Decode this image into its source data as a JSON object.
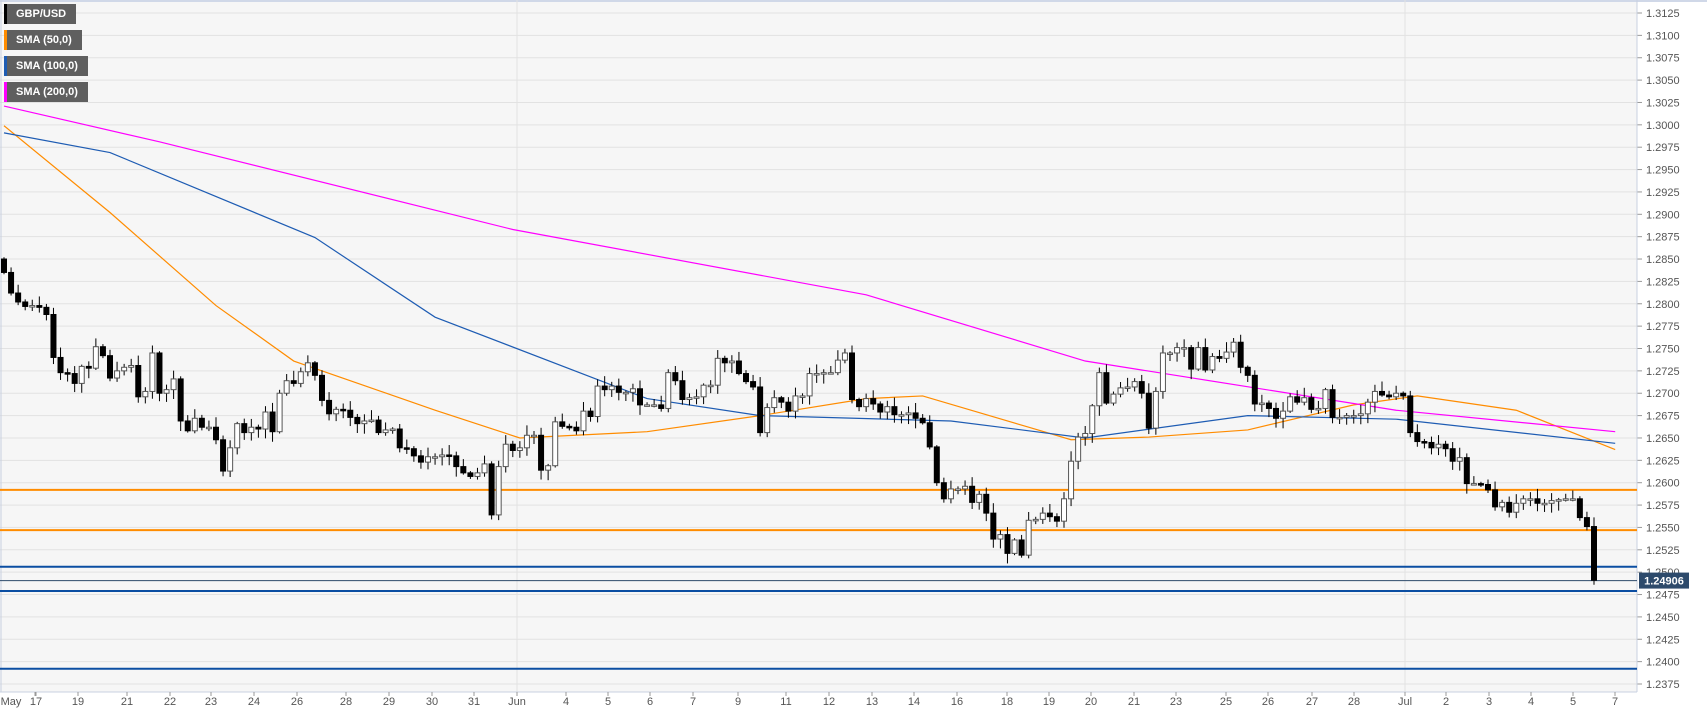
{
  "chart_data": {
    "type": "candlestick",
    "symbol": "GBP/USD",
    "legend": [
      {
        "label": "GBP/USD",
        "color": "#000000"
      },
      {
        "label": "SMA (50,0)",
        "color": "#ff8c00"
      },
      {
        "label": "SMA (100,0)",
        "color": "#1e5cb3"
      },
      {
        "label": "SMA (200,0)",
        "color": "#ff00ff"
      }
    ],
    "ylim": [
      1.2375,
      1.3125
    ],
    "ytick_step": 0.0025,
    "yticks": [
      "1.3125",
      "1.3100",
      "1.3075",
      "1.3050",
      "1.3025",
      "1.3000",
      "1.2975",
      "1.2950",
      "1.2925",
      "1.2900",
      "1.2875",
      "1.2850",
      "1.2825",
      "1.2800",
      "1.2775",
      "1.2750",
      "1.2725",
      "1.2700",
      "1.2675",
      "1.2650",
      "1.2625",
      "1.2600",
      "1.2575",
      "1.2550",
      "1.2525",
      "1.2500",
      "1.2475",
      "1.2450",
      "1.2425",
      "1.2400",
      "1.2375"
    ],
    "xticks": [
      "May",
      "17",
      "19",
      "21",
      "22",
      "23",
      "24",
      "26",
      "28",
      "29",
      "30",
      "31",
      "Jun",
      "4",
      "5",
      "6",
      "7",
      "9",
      "11",
      "12",
      "13",
      "14",
      "16",
      "18",
      "19",
      "20",
      "21",
      "23",
      "25",
      "26",
      "27",
      "28",
      "Jul",
      "2",
      "3",
      "4",
      "5",
      "7"
    ],
    "first_open": 1.285,
    "closes": [
      1.2835,
      1.2812,
      1.2802,
      1.2797,
      1.2798,
      1.2796,
      1.2788,
      1.274,
      1.2723,
      1.2722,
      1.2711,
      1.273,
      1.2728,
      1.2752,
      1.2742,
      1.2717,
      1.2725,
      1.2729,
      1.2731,
      1.2696,
      1.2702,
      1.2745,
      1.27,
      1.2704,
      1.2716,
      1.2669,
      1.2658,
      1.2672,
      1.2662,
      1.2662,
      1.2648,
      1.2613,
      1.2639,
      1.2666,
      1.2656,
      1.2662,
      1.266,
      1.2679,
      1.2657,
      1.27,
      1.2714,
      1.2711,
      1.2724,
      1.2734,
      1.272,
      1.2692,
      1.2677,
      1.2682,
      1.2681,
      1.2673,
      1.2666,
      1.2669,
      1.267,
      1.2656,
      1.2659,
      1.266,
      1.2639,
      1.2638,
      1.263,
      1.2623,
      1.2629,
      1.2629,
      1.2631,
      1.263,
      1.2618,
      1.2611,
      1.2607,
      1.2611,
      1.2621,
      1.2564,
      1.2618,
      1.2643,
      1.2636,
      1.2639,
      1.2653,
      1.2653,
      1.2614,
      1.2619,
      1.2668,
      1.2663,
      1.2662,
      1.2658,
      1.268,
      1.2674,
      1.2708,
      1.2704,
      1.2708,
      1.2701,
      1.2701,
      1.2705,
      1.2687,
      1.2687,
      1.2687,
      1.2683,
      1.2723,
      1.2714,
      1.2693,
      1.2695,
      1.2696,
      1.2709,
      1.2709,
      1.2739,
      1.2734,
      1.2736,
      1.2722,
      1.2713,
      1.2707,
      1.2656,
      1.2684,
      1.2695,
      1.269,
      1.268,
      1.2697,
      1.2697,
      1.2722,
      1.2722,
      1.2723,
      1.2723,
      1.2737,
      1.2745,
      1.2693,
      1.2685,
      1.2694,
      1.2688,
      1.2679,
      1.2685,
      1.2676,
      1.2676,
      1.2678,
      1.2672,
      1.2667,
      1.264,
      1.26,
      1.2582,
      1.2593,
      1.2593,
      1.2596,
      1.2578,
      1.2587,
      1.2566,
      1.2537,
      1.2542,
      1.2521,
      1.2536,
      1.2519,
      1.2558,
      1.2559,
      1.2566,
      1.2562,
      1.2557,
      1.2582,
      1.2624,
      1.2651,
      1.2655,
      1.2686,
      1.2723,
      1.2689,
      1.2699,
      1.2706,
      1.2707,
      1.2713,
      1.27,
      1.2661,
      1.2702,
      1.2745,
      1.2745,
      1.2751,
      1.2751,
      1.2727,
      1.2751,
      1.2726,
      1.2741,
      1.2739,
      1.2746,
      1.2757,
      1.2729,
      1.272,
      1.2688,
      1.2689,
      1.2683,
      1.2672,
      1.268,
      1.2696,
      1.269,
      1.2695,
      1.2682,
      1.2683,
      1.2704,
      1.2673,
      1.2673,
      1.2675,
      1.2675,
      1.2677,
      1.269,
      1.2702,
      1.2698,
      1.2696,
      1.27,
      1.2697,
      1.2656,
      1.2646,
      1.2645,
      1.2639,
      1.2643,
      1.2638,
      1.2624,
      1.2628,
      1.2599,
      1.2599,
      1.2598,
      1.2592,
      1.2573,
      1.2578,
      1.2567,
      1.2577,
      1.2582,
      1.2582,
      1.2577,
      1.2577,
      1.258,
      1.2581,
      1.2582,
      1.2582,
      1.2561,
      1.2551,
      1.2491
    ],
    "sma": [
      {
        "name": "SMA (50,0)",
        "color": "#ff8c00",
        "points": [
          [
            0,
            1.2999
          ],
          [
            15,
            1.2902
          ],
          [
            30,
            1.2798
          ],
          [
            41,
            1.2736
          ],
          [
            61,
            1.2681
          ],
          [
            73,
            1.265
          ],
          [
            91,
            1.2657
          ],
          [
            107,
            1.2675
          ],
          [
            122,
            1.2694
          ],
          [
            130,
            1.2697
          ],
          [
            145,
            1.2662
          ],
          [
            151,
            1.2648
          ],
          [
            162,
            1.2651
          ],
          [
            176,
            1.2659
          ],
          [
            191,
            1.2687
          ],
          [
            200,
            1.2697
          ],
          [
            214,
            1.2681
          ],
          [
            228,
            1.2637
          ]
        ]
      },
      {
        "name": "SMA (100,0)",
        "color": "#1e5cb3",
        "points": [
          [
            0,
            1.2991
          ],
          [
            15,
            1.2969
          ],
          [
            44,
            1.2874
          ],
          [
            61,
            1.2785
          ],
          [
            91,
            1.2694
          ],
          [
            107,
            1.2675
          ],
          [
            134,
            1.2669
          ],
          [
            153,
            1.265
          ],
          [
            176,
            1.2675
          ],
          [
            197,
            1.2671
          ],
          [
            228,
            1.2644
          ]
        ]
      },
      {
        "name": "SMA (200,0)",
        "color": "#ff00ff",
        "points": [
          [
            0,
            1.3021
          ],
          [
            22,
            1.2981
          ],
          [
            72,
            1.2883
          ],
          [
            122,
            1.281
          ],
          [
            153,
            1.2736
          ],
          [
            197,
            1.2681
          ],
          [
            228,
            1.2657
          ]
        ]
      }
    ],
    "horizontal_levels": [
      {
        "value": 1.2592,
        "color": "#ff8c00"
      },
      {
        "value": 1.2547,
        "color": "#ff8c00"
      },
      {
        "value": 1.2506,
        "color": "#0b4ea2"
      },
      {
        "value": 1.2479,
        "color": "#0b4ea2"
      },
      {
        "value": 1.2392,
        "color": "#0b4ea2"
      }
    ],
    "last_price": 1.24906,
    "last_price_label": "1.24906",
    "last_price_color": "#2d4a6b"
  }
}
